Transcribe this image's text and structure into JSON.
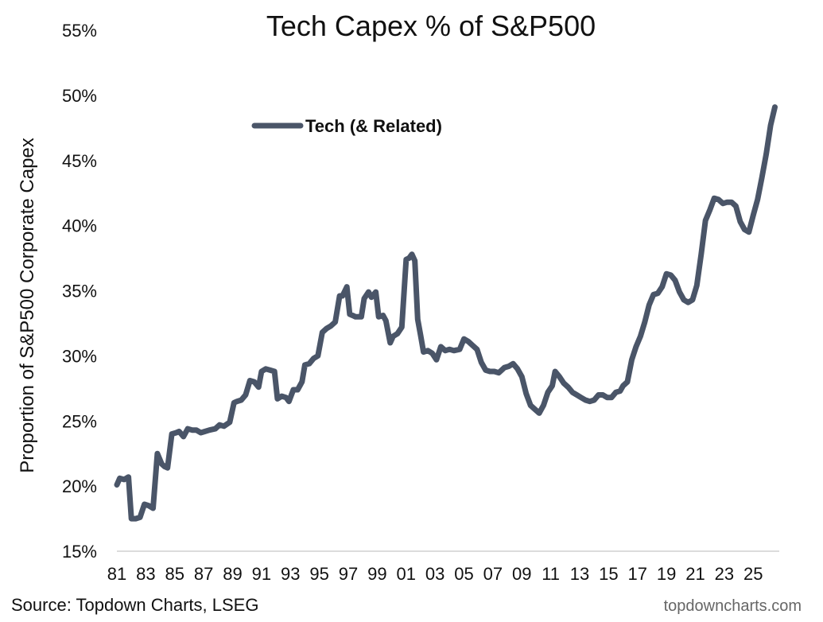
{
  "chart_data": {
    "type": "line",
    "title": "Tech Capex % of S&P500",
    "ylabel": "Proportion of S&P500 Corporate Capex",
    "xlabel": "",
    "xlim": [
      1981,
      2026.8
    ],
    "ylim": [
      15,
      55
    ],
    "yticks": [
      15,
      20,
      25,
      30,
      35,
      40,
      45,
      50,
      55
    ],
    "ytick_labels": [
      "15%",
      "20%",
      "25%",
      "30%",
      "35%",
      "40%",
      "45%",
      "50%",
      "55%"
    ],
    "xticks": [
      1981,
      1983,
      1985,
      1987,
      1989,
      1991,
      1993,
      1995,
      1997,
      1999,
      2001,
      2003,
      2005,
      2007,
      2009,
      2011,
      2013,
      2015,
      2017,
      2019,
      2021,
      2023,
      2025
    ],
    "xtick_labels": [
      "81",
      "83",
      "85",
      "87",
      "89",
      "91",
      "93",
      "95",
      "97",
      "99",
      "01",
      "03",
      "05",
      "07",
      "09",
      "11",
      "13",
      "15",
      "17",
      "19",
      "21",
      "23",
      "25"
    ],
    "grid": false,
    "legend_position": "top-left",
    "series": [
      {
        "name": "Tech (& Related)",
        "color": "#4a5568",
        "x": [
          1981.0,
          1981.2,
          1981.5,
          1981.8,
          1982.0,
          1982.1,
          1982.3,
          1982.6,
          1982.9,
          1983.2,
          1983.5,
          1983.8,
          1984.1,
          1984.3,
          1984.5,
          1984.8,
          1985.1,
          1985.3,
          1985.6,
          1985.9,
          1986.2,
          1986.5,
          1986.8,
          1987.1,
          1987.4,
          1987.8,
          1988.1,
          1988.4,
          1988.8,
          1989.1,
          1989.3,
          1989.6,
          1989.9,
          1990.2,
          1990.5,
          1990.8,
          1991.0,
          1991.3,
          1991.6,
          1991.9,
          1992.1,
          1992.4,
          1992.7,
          1992.9,
          1993.2,
          1993.5,
          1993.8,
          1994.0,
          1994.3,
          1994.6,
          1994.9,
          1995.2,
          1995.5,
          1995.8,
          1996.1,
          1996.4,
          1996.6,
          1996.9,
          1997.1,
          1997.3,
          1997.5,
          1997.7,
          1997.9,
          1998.1,
          1998.4,
          1998.6,
          1998.9,
          1999.1,
          1999.4,
          1999.6,
          1999.9,
          2000.1,
          2000.4,
          2000.7,
          2001.0,
          2001.2,
          2001.4,
          2001.6,
          2001.8,
          2002.0,
          2002.2,
          2002.5,
          2002.8,
          2003.1,
          2003.4,
          2003.7,
          2004.0,
          2004.3,
          2004.7,
          2005.0,
          2005.3,
          2005.6,
          2005.9,
          2006.2,
          2006.5,
          2006.8,
          2007.1,
          2007.4,
          2007.8,
          2008.1,
          2008.4,
          2008.7,
          2009.0,
          2009.3,
          2009.6,
          2009.9,
          2010.2,
          2010.5,
          2010.8,
          2011.1,
          2011.3,
          2011.6,
          2011.9,
          2012.2,
          2012.5,
          2012.8,
          2013.1,
          2013.4,
          2013.7,
          2014.0,
          2014.3,
          2014.6,
          2014.9,
          2015.2,
          2015.5,
          2015.8,
          2016.0,
          2016.3,
          2016.6,
          2016.9,
          2017.2,
          2017.5,
          2017.8,
          2018.1,
          2018.4,
          2018.7,
          2019.0,
          2019.3,
          2019.6,
          2019.9,
          2020.2,
          2020.5,
          2020.8,
          2021.1,
          2021.4,
          2021.7,
          2022.0,
          2022.3,
          2022.6,
          2022.9,
          2023.2,
          2023.5,
          2023.8,
          2024.1,
          2024.4,
          2024.7,
          2025.0,
          2025.3,
          2025.6,
          2025.9,
          2026.2,
          2026.5
        ],
        "values": [
          20.1,
          20.6,
          20.5,
          20.7,
          17.5,
          17.5,
          17.5,
          17.6,
          18.6,
          18.5,
          18.3,
          22.5,
          21.7,
          21.5,
          21.4,
          24.0,
          24.1,
          24.2,
          23.8,
          24.4,
          24.3,
          24.3,
          24.1,
          24.2,
          24.3,
          24.4,
          24.7,
          24.6,
          24.9,
          26.4,
          26.5,
          26.6,
          27.0,
          28.1,
          28.0,
          27.6,
          28.8,
          29.0,
          28.9,
          28.8,
          26.7,
          26.9,
          26.8,
          26.5,
          27.4,
          27.4,
          28.0,
          29.3,
          29.4,
          29.8,
          30.0,
          31.8,
          32.1,
          32.3,
          32.6,
          34.6,
          34.6,
          35.3,
          33.2,
          33.1,
          33.0,
          33.0,
          33.0,
          34.4,
          34.9,
          34.5,
          34.9,
          33.0,
          33.1,
          32.7,
          31.0,
          31.5,
          31.7,
          32.2,
          37.4,
          37.5,
          37.8,
          37.3,
          32.8,
          31.6,
          30.3,
          30.4,
          30.2,
          29.7,
          30.7,
          30.4,
          30.5,
          30.4,
          30.5,
          31.3,
          31.1,
          30.8,
          30.5,
          29.5,
          28.9,
          28.8,
          28.8,
          28.7,
          29.1,
          29.2,
          29.4,
          29.0,
          28.4,
          27.1,
          26.2,
          25.9,
          25.6,
          26.2,
          27.2,
          27.7,
          28.8,
          28.4,
          27.9,
          27.6,
          27.2,
          27.0,
          26.8,
          26.6,
          26.5,
          26.6,
          27.0,
          27.0,
          26.8,
          26.8,
          27.2,
          27.3,
          27.7,
          28.0,
          29.7,
          30.7,
          31.5,
          32.6,
          33.9,
          34.7,
          34.8,
          35.3,
          36.3,
          36.2,
          35.8,
          34.9,
          34.3,
          34.1,
          34.3,
          35.4,
          37.8,
          40.4,
          41.2,
          42.1,
          42.0,
          41.7,
          41.8,
          41.8,
          41.5,
          40.3,
          39.7,
          39.5,
          40.8,
          42.0,
          43.7,
          45.5,
          47.7,
          49.1
        ]
      }
    ]
  },
  "source": "Source: Topdown Charts, LSEG",
  "watermark": "topdowncharts.com"
}
